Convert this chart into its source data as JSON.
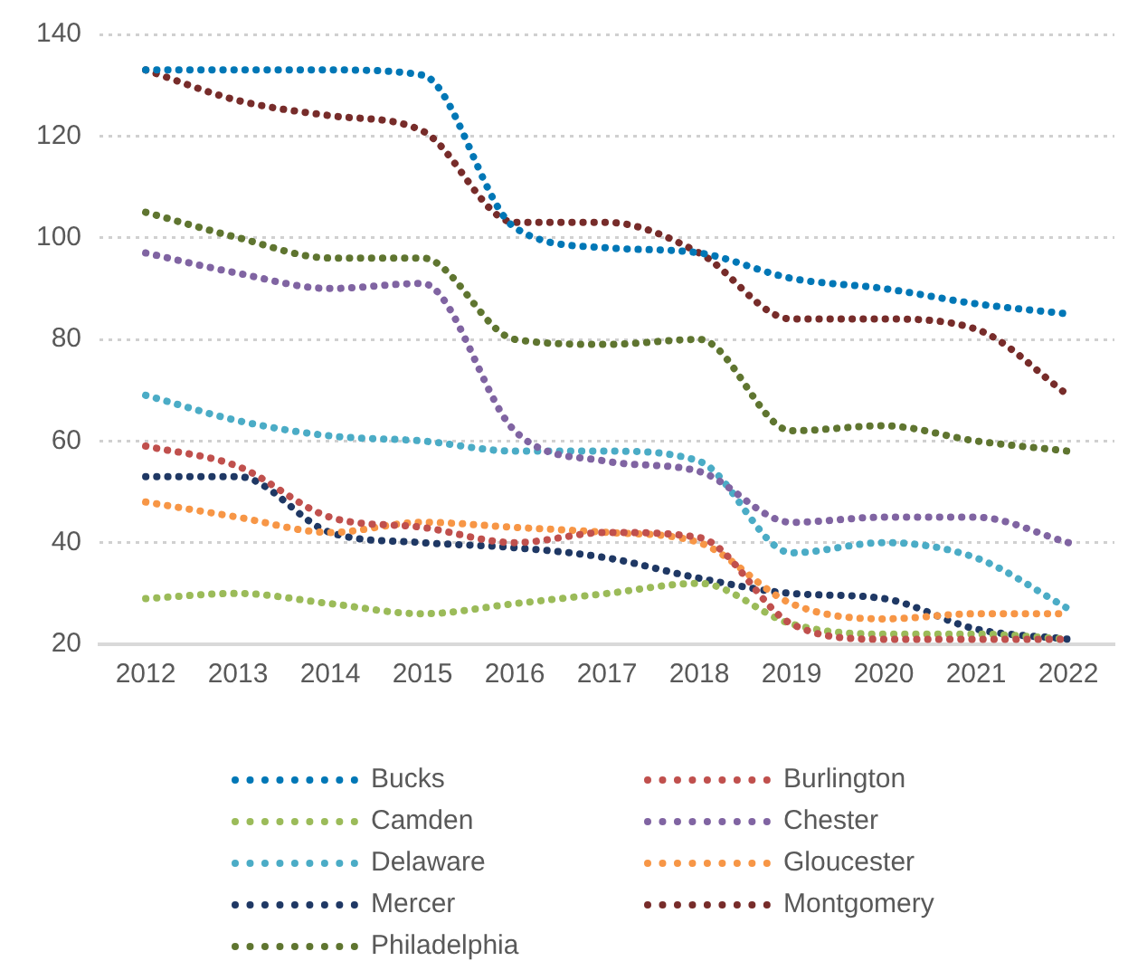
{
  "chart_data": {
    "type": "line",
    "categories": [
      "2012",
      "2013",
      "2014",
      "2015",
      "2016",
      "2017",
      "2018",
      "2019",
      "2020",
      "2021",
      "2022"
    ],
    "series": [
      {
        "name": "Bucks",
        "color": "#0077b6",
        "values": [
          133,
          133,
          133,
          132,
          102,
          98,
          97,
          92,
          90,
          87,
          85
        ]
      },
      {
        "name": "Burlington",
        "color": "#c0504d",
        "values": [
          59,
          55,
          45,
          43,
          40,
          42,
          41,
          24,
          21,
          21,
          21
        ]
      },
      {
        "name": "Camden",
        "color": "#9bbb59",
        "values": [
          29,
          30,
          28,
          26,
          28,
          30,
          32,
          24,
          22,
          22,
          21
        ]
      },
      {
        "name": "Chester",
        "color": "#8064a2",
        "values": [
          97,
          93,
          90,
          91,
          62,
          56,
          54,
          44,
          45,
          45,
          40
        ]
      },
      {
        "name": "Delaware",
        "color": "#4bacc6",
        "values": [
          69,
          64,
          61,
          60,
          58,
          58,
          56,
          38,
          40,
          37,
          27
        ]
      },
      {
        "name": "Gloucester",
        "color": "#f79646",
        "values": [
          48,
          45,
          42,
          44,
          43,
          42,
          40,
          28,
          25,
          26,
          26
        ]
      },
      {
        "name": "Mercer",
        "color": "#1f3864",
        "values": [
          53,
          53,
          42,
          40,
          39,
          37,
          33,
          30,
          29,
          23,
          21
        ]
      },
      {
        "name": "Montgomery",
        "color": "#772c2a",
        "values": [
          133,
          127,
          124,
          121,
          103,
          103,
          97,
          84,
          84,
          82,
          69
        ]
      },
      {
        "name": "Philadelphia",
        "color": "#5f7530",
        "values": [
          105,
          100,
          96,
          96,
          80,
          79,
          80,
          62,
          63,
          60,
          58
        ]
      }
    ],
    "ylim": [
      20,
      140
    ],
    "yticks": [
      20,
      40,
      60,
      80,
      100,
      120,
      140
    ],
    "grid": "y",
    "legend": "bottom",
    "marker": "none",
    "line_style": "dotted"
  }
}
